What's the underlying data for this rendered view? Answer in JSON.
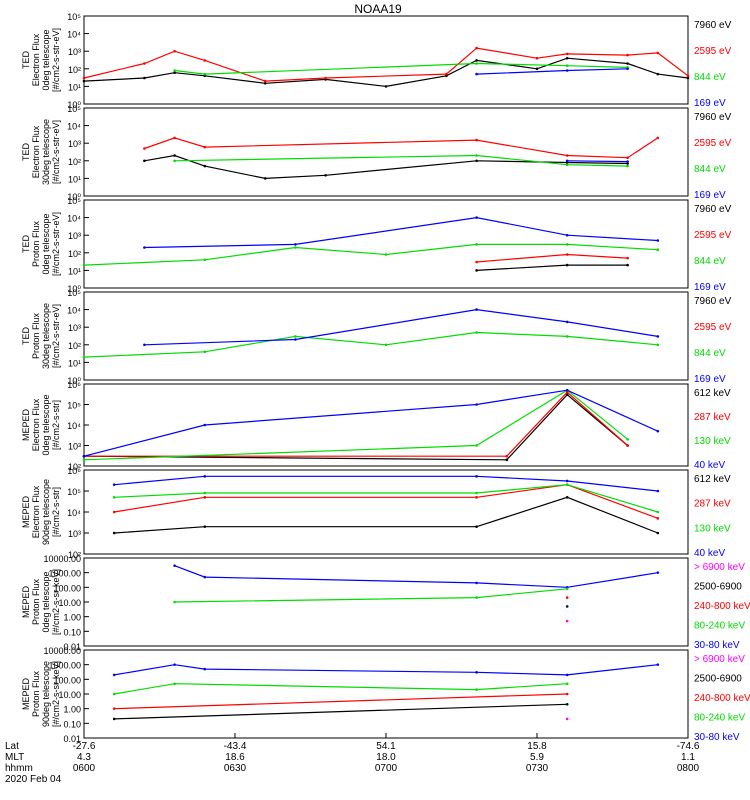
{
  "title": "NOAA19",
  "date_label": "2020 Feb 04",
  "colors": {
    "black": "#000000",
    "red": "#ff0000",
    "green": "#00dd00",
    "blue": "#0000ff",
    "magenta": "#ff00ff"
  },
  "x_axis": {
    "row_labels": [
      "Lat",
      "MLT",
      "hhmm"
    ],
    "ticks": [
      {
        "lat": "-27.6",
        "mlt": "4.3",
        "time": "0600"
      },
      {
        "lat": "-43.4",
        "mlt": "18.6",
        "time": "0630"
      },
      {
        "lat": "54.1",
        "mlt": "18.0",
        "time": "0700"
      },
      {
        "lat": "15.8",
        "mlt": "5.9",
        "time": "0730"
      },
      {
        "lat": "-74.6",
        "mlt": "1.1",
        "time": "0800"
      }
    ]
  },
  "chart_data": [
    {
      "type": "line",
      "scale": "log",
      "ylim": [
        1,
        100000
      ],
      "ylabel": [
        "TED",
        "Electron Flux",
        "0deg telescope",
        "[#/cm2-s-str-eV]"
      ],
      "tick_labels": [
        "10⁰",
        "10¹",
        "10²",
        "10³",
        "10⁴",
        "10⁵"
      ],
      "legend": [
        {
          "label": "7960 eV",
          "color": "black"
        },
        {
          "label": "2595 eV",
          "color": "red"
        },
        {
          "label": "844 eV",
          "color": "green"
        },
        {
          "label": "169 eV",
          "color": "blue"
        }
      ],
      "series": [
        {
          "color": "black",
          "points": [
            [
              0.0,
              20
            ],
            [
              0.1,
              30
            ],
            [
              0.15,
              60
            ],
            [
              0.2,
              40
            ],
            [
              0.3,
              15
            ],
            [
              0.4,
              25
            ],
            [
              0.5,
              10
            ],
            [
              0.6,
              40
            ],
            [
              0.65,
              300
            ],
            [
              0.75,
              100
            ],
            [
              0.8,
              400
            ],
            [
              0.9,
              200
            ],
            [
              0.95,
              50
            ],
            [
              1.0,
              30
            ]
          ]
        },
        {
          "color": "red",
          "points": [
            [
              0.0,
              30
            ],
            [
              0.1,
              200
            ],
            [
              0.15,
              1000
            ],
            [
              0.2,
              300
            ],
            [
              0.3,
              20
            ],
            [
              0.4,
              30
            ],
            [
              0.6,
              50
            ],
            [
              0.65,
              1500
            ],
            [
              0.75,
              400
            ],
            [
              0.8,
              700
            ],
            [
              0.9,
              600
            ],
            [
              0.95,
              800
            ],
            [
              1.0,
              40
            ]
          ]
        },
        {
          "color": "green",
          "points": [
            [
              0.15,
              80
            ],
            [
              0.2,
              50
            ],
            [
              0.65,
              200
            ],
            [
              0.8,
              150
            ],
            [
              0.9,
              120
            ]
          ]
        },
        {
          "color": "blue",
          "points": [
            [
              0.65,
              50
            ],
            [
              0.8,
              80
            ],
            [
              0.9,
              100
            ]
          ]
        }
      ]
    },
    {
      "type": "line",
      "scale": "log",
      "ylim": [
        1,
        100000
      ],
      "ylabel": [
        "TED",
        "Electron Flux",
        "30deg telescope",
        "[#/cm2-s-str-eV]"
      ],
      "tick_labels": [
        "10⁰",
        "10¹",
        "10²",
        "10³",
        "10⁴",
        "10⁵"
      ],
      "legend": [
        {
          "label": "7960 eV",
          "color": "black"
        },
        {
          "label": "2595 eV",
          "color": "red"
        },
        {
          "label": "844 eV",
          "color": "green"
        },
        {
          "label": "169 eV",
          "color": "blue"
        }
      ],
      "series": [
        {
          "color": "black",
          "points": [
            [
              0.1,
              100
            ],
            [
              0.15,
              200
            ],
            [
              0.2,
              50
            ],
            [
              0.3,
              10
            ],
            [
              0.4,
              15
            ],
            [
              0.65,
              100
            ],
            [
              0.8,
              80
            ],
            [
              0.9,
              70
            ]
          ]
        },
        {
          "color": "red",
          "points": [
            [
              0.1,
              500
            ],
            [
              0.15,
              2000
            ],
            [
              0.2,
              600
            ],
            [
              0.65,
              1500
            ],
            [
              0.8,
              200
            ],
            [
              0.9,
              150
            ],
            [
              0.95,
              2000
            ]
          ]
        },
        {
          "color": "green",
          "points": [
            [
              0.15,
              100
            ],
            [
              0.65,
              200
            ],
            [
              0.8,
              60
            ],
            [
              0.9,
              50
            ]
          ]
        },
        {
          "color": "blue",
          "points": [
            [
              0.8,
              100
            ],
            [
              0.9,
              90
            ]
          ]
        }
      ]
    },
    {
      "type": "line",
      "scale": "log",
      "ylim": [
        1,
        100000
      ],
      "ylabel": [
        "TED",
        "Proton Flux",
        "0deg telescope",
        "[#/cm2-s-str-eV]"
      ],
      "tick_labels": [
        "10⁰",
        "10¹",
        "10²",
        "10³",
        "10⁴",
        "10⁵"
      ],
      "legend": [
        {
          "label": "7960 eV",
          "color": "black"
        },
        {
          "label": "2595 eV",
          "color": "red"
        },
        {
          "label": "844 eV",
          "color": "green"
        },
        {
          "label": "169 eV",
          "color": "blue"
        }
      ],
      "series": [
        {
          "color": "black",
          "points": [
            [
              0.65,
              10
            ],
            [
              0.8,
              20
            ],
            [
              0.9,
              20
            ]
          ]
        },
        {
          "color": "red",
          "points": [
            [
              0.65,
              30
            ],
            [
              0.8,
              80
            ],
            [
              0.9,
              50
            ]
          ]
        },
        {
          "color": "green",
          "points": [
            [
              0.0,
              20
            ],
            [
              0.2,
              40
            ],
            [
              0.35,
              200
            ],
            [
              0.5,
              80
            ],
            [
              0.65,
              300
            ],
            [
              0.8,
              300
            ],
            [
              0.95,
              150
            ]
          ]
        },
        {
          "color": "blue",
          "points": [
            [
              0.1,
              200
            ],
            [
              0.35,
              300
            ],
            [
              0.65,
              10000
            ],
            [
              0.8,
              1000
            ],
            [
              0.95,
              500
            ]
          ]
        }
      ]
    },
    {
      "type": "line",
      "scale": "log",
      "ylim": [
        1,
        100000
      ],
      "ylabel": [
        "TED",
        "Proton Flux",
        "30deg telescope",
        "[#/cm2-s-str-eV]"
      ],
      "tick_labels": [
        "10⁰",
        "10¹",
        "10²",
        "10³",
        "10⁴",
        "10⁵"
      ],
      "legend": [
        {
          "label": "7960 eV",
          "color": "black"
        },
        {
          "label": "2595 eV",
          "color": "red"
        },
        {
          "label": "844 eV",
          "color": "green"
        },
        {
          "label": "169 eV",
          "color": "blue"
        }
      ],
      "series": [
        {
          "color": "green",
          "points": [
            [
              0.0,
              20
            ],
            [
              0.2,
              40
            ],
            [
              0.35,
              300
            ],
            [
              0.5,
              100
            ],
            [
              0.65,
              500
            ],
            [
              0.8,
              300
            ],
            [
              0.95,
              100
            ]
          ]
        },
        {
          "color": "blue",
          "points": [
            [
              0.1,
              100
            ],
            [
              0.35,
              200
            ],
            [
              0.65,
              10000
            ],
            [
              0.8,
              2000
            ],
            [
              0.95,
              300
            ]
          ]
        }
      ]
    },
    {
      "type": "line",
      "scale": "log",
      "ylim": [
        100,
        1000000
      ],
      "ylabel": [
        "MEPED",
        "Electron Flux",
        "0deg telescope",
        "[#/cm2-s-str]"
      ],
      "tick_labels": [
        "10²",
        "10³",
        "10⁴",
        "10⁵",
        "10⁶"
      ],
      "legend": [
        {
          "label": "612 keV",
          "color": "black"
        },
        {
          "label": "287 keV",
          "color": "red"
        },
        {
          "label": "130 keV",
          "color": "green"
        },
        {
          "label": "40 keV",
          "color": "blue"
        }
      ],
      "series": [
        {
          "color": "black",
          "points": [
            [
              0.0,
              300
            ],
            [
              0.7,
              200
            ],
            [
              0.8,
              300000
            ],
            [
              0.9,
              1000
            ]
          ]
        },
        {
          "color": "red",
          "points": [
            [
              0.0,
              300
            ],
            [
              0.7,
              300
            ],
            [
              0.8,
              400000
            ],
            [
              0.9,
              1000
            ]
          ]
        },
        {
          "color": "green",
          "points": [
            [
              0.0,
              200
            ],
            [
              0.65,
              1000
            ],
            [
              0.8,
              500000
            ],
            [
              0.9,
              2000
            ]
          ]
        },
        {
          "color": "blue",
          "points": [
            [
              0.0,
              300
            ],
            [
              0.2,
              10000
            ],
            [
              0.65,
              100000
            ],
            [
              0.8,
              500000
            ],
            [
              0.95,
              5000
            ]
          ]
        }
      ]
    },
    {
      "type": "line",
      "scale": "log",
      "ylim": [
        100,
        1000000
      ],
      "ylabel": [
        "MEPED",
        "Electron Flux",
        "90deg telescope",
        "[#/cm2-s-str]"
      ],
      "tick_labels": [
        "10²",
        "10³",
        "10⁴",
        "10⁵",
        "10⁶"
      ],
      "legend": [
        {
          "label": "612 keV",
          "color": "black"
        },
        {
          "label": "287 keV",
          "color": "red"
        },
        {
          "label": "130 keV",
          "color": "green"
        },
        {
          "label": "40 keV",
          "color": "blue"
        }
      ],
      "series": [
        {
          "color": "black",
          "points": [
            [
              0.05,
              1000
            ],
            [
              0.2,
              2000
            ],
            [
              0.65,
              2000
            ],
            [
              0.8,
              50000
            ],
            [
              0.95,
              1000
            ]
          ]
        },
        {
          "color": "red",
          "points": [
            [
              0.05,
              10000
            ],
            [
              0.2,
              50000
            ],
            [
              0.65,
              50000
            ],
            [
              0.8,
              200000
            ],
            [
              0.95,
              5000
            ]
          ]
        },
        {
          "color": "green",
          "points": [
            [
              0.05,
              50000
            ],
            [
              0.2,
              80000
            ],
            [
              0.65,
              80000
            ],
            [
              0.8,
              200000
            ],
            [
              0.95,
              10000
            ]
          ]
        },
        {
          "color": "blue",
          "points": [
            [
              0.05,
              200000
            ],
            [
              0.2,
              500000
            ],
            [
              0.65,
              500000
            ],
            [
              0.8,
              300000
            ],
            [
              0.95,
              100000
            ]
          ]
        }
      ]
    },
    {
      "type": "line",
      "scale": "log",
      "ylim": [
        0.01,
        10000
      ],
      "ylabel": [
        "MEPED",
        "Proton Flux",
        "0deg telescope",
        "[#/cm2-s-sr-keV]"
      ],
      "tick_labels": [
        "0.01",
        "0.10",
        "1.00",
        "10.00",
        "100.00",
        "1000.00",
        "10000.00"
      ],
      "legend": [
        {
          "label": "> 6900 keV",
          "color": "magenta"
        },
        {
          "label": "2500-6900",
          "color": "black"
        },
        {
          "label": "240-800 keV",
          "color": "red"
        },
        {
          "label": "80-240 keV",
          "color": "green"
        },
        {
          "label": "30-80 keV",
          "color": "blue"
        }
      ],
      "series": [
        {
          "color": "blue",
          "points": [
            [
              0.15,
              3000
            ],
            [
              0.2,
              500
            ],
            [
              0.65,
              200
            ],
            [
              0.8,
              100
            ],
            [
              0.95,
              1000
            ]
          ]
        },
        {
          "color": "green",
          "points": [
            [
              0.15,
              10
            ],
            [
              0.65,
              20
            ],
            [
              0.8,
              80
            ]
          ]
        },
        {
          "color": "red",
          "points": [
            [
              0.8,
              20
            ]
          ]
        },
        {
          "color": "black",
          "points": [
            [
              0.8,
              5
            ]
          ]
        },
        {
          "color": "magenta",
          "points": [
            [
              0.8,
              0.5
            ]
          ]
        }
      ]
    },
    {
      "type": "line",
      "scale": "log",
      "ylim": [
        0.01,
        10000
      ],
      "ylabel": [
        "MEPED",
        "Proton Flux",
        "90deg telescope",
        "[#/cm2-s-sr-keV]"
      ],
      "tick_labels": [
        "0.01",
        "0.10",
        "1.00",
        "10.00",
        "100.00",
        "1000.00",
        "10000.00"
      ],
      "legend": [
        {
          "label": "> 6900 keV",
          "color": "magenta"
        },
        {
          "label": "2500-6900",
          "color": "black"
        },
        {
          "label": "240-800 keV",
          "color": "red"
        },
        {
          "label": "80-240 keV",
          "color": "green"
        },
        {
          "label": "30-80 keV",
          "color": "blue"
        }
      ],
      "series": [
        {
          "color": "blue",
          "points": [
            [
              0.05,
              200
            ],
            [
              0.15,
              1000
            ],
            [
              0.2,
              500
            ],
            [
              0.65,
              300
            ],
            [
              0.8,
              200
            ],
            [
              0.95,
              1000
            ]
          ]
        },
        {
          "color": "green",
          "points": [
            [
              0.05,
              10
            ],
            [
              0.15,
              50
            ],
            [
              0.65,
              20
            ],
            [
              0.8,
              50
            ]
          ]
        },
        {
          "color": "red",
          "points": [
            [
              0.05,
              1
            ],
            [
              0.8,
              10
            ]
          ]
        },
        {
          "color": "black",
          "points": [
            [
              0.05,
              0.2
            ],
            [
              0.8,
              2
            ]
          ]
        },
        {
          "color": "magenta",
          "points": [
            [
              0.8,
              0.2
            ]
          ]
        }
      ]
    }
  ]
}
